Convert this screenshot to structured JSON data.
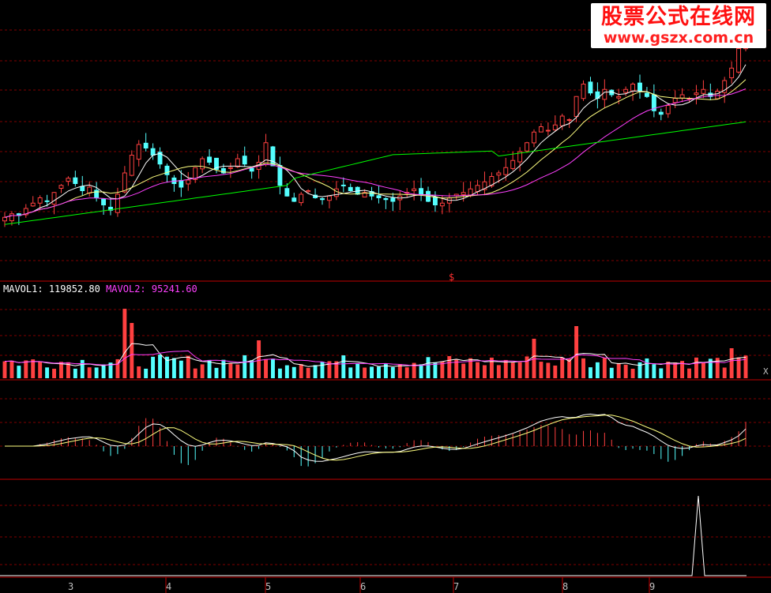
{
  "watermark": {
    "title": "股票公式在线网",
    "url": "www.gszx.com.cn"
  },
  "volume_panel": {
    "mavol1_label": "MAVOL1:",
    "mavol1_value": "119852.80",
    "mavol2_label": "MAVOL2:",
    "mavol2_value": "95241.60"
  },
  "marker_symbol": "$",
  "close_button": "X",
  "months": [
    "3",
    "4",
    "5",
    "6",
    "7",
    "8",
    "9"
  ],
  "colors": {
    "up": "#ff4040",
    "down": "#54ffff",
    "ma5": "#ffffff",
    "ma10": "#ffff80",
    "ma20": "#ff40ff",
    "ma60": "#00ff00",
    "grid": "#800000",
    "axis": "#c00000"
  },
  "chart_data": [
    {
      "type": "candlestick",
      "series": [
        {
          "name": "MA5"
        },
        {
          "name": "MA10"
        },
        {
          "name": "MA20"
        },
        {
          "name": "MA60"
        }
      ],
      "close": [
        10.1,
        10.3,
        10.2,
        10.6,
        10.9,
        11.2,
        11.0,
        11.5,
        11.9,
        12.3,
        12.0,
        11.6,
        11.8,
        11.2,
        10.8,
        10.5,
        11.4,
        12.6,
        13.6,
        14.2,
        14.0,
        13.6,
        13.1,
        12.5,
        12.0,
        11.8,
        12.2,
        12.9,
        13.4,
        13.2,
        12.8,
        12.6,
        12.9,
        13.4,
        13.1,
        12.7,
        13.2,
        14.3,
        13.0,
        11.9,
        11.3,
        11.0,
        11.4,
        11.6,
        11.2,
        11.1,
        11.3,
        11.7,
        11.9,
        11.6,
        11.4,
        11.5,
        11.3,
        11.2,
        11.1,
        11.0,
        11.3,
        11.5,
        11.7,
        11.4,
        11.0,
        10.8,
        10.9,
        11.2,
        11.4,
        11.5,
        11.7,
        11.9,
        12.1,
        12.4,
        12.6,
        12.9,
        13.3,
        13.8,
        14.3,
        14.9,
        15.2,
        15.0,
        15.3,
        15.8,
        15.6,
        16.9,
        17.6,
        17.1,
        16.8,
        17.3,
        17.0,
        16.9,
        17.3,
        17.6,
        17.2,
        16.9,
        16.1,
        15.9,
        16.4,
        16.8,
        17.0,
        16.8,
        17.1,
        17.3,
        16.9,
        17.2,
        17.8,
        18.5,
        19.6,
        20.4
      ],
      "volume_unit": "relative"
    }
  ]
}
